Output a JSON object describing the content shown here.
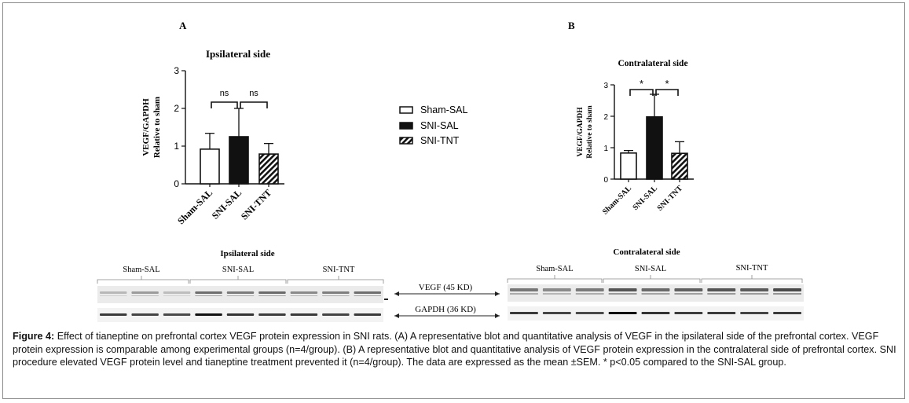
{
  "figure_label": "Figure 4:",
  "caption_text": "Effect of tianeptine on prefrontal cortex VEGF protein expression in SNI rats. (A) A representative blot and quantitative analysis of VEGF in the ipsilateral side of the prefrontal cortex. VEGF protein expression is comparable among experimental groups (n=4/group). (B) A representative blot and quantitative analysis of VEGF protein expression in the contralateral side of prefrontal cortex. SNI procedure elevated VEGF protein level and tianeptine treatment prevented it (n=4/group). The data are expressed as the mean ±SEM. * p<0.05 compared to the SNI-SAL group.",
  "legend": [
    {
      "label": "Sham-SAL",
      "pattern": "open"
    },
    {
      "label": "SNI-SAL",
      "pattern": "solid"
    },
    {
      "label": "SNI-TNT",
      "pattern": "hatched"
    }
  ],
  "chart_data": [
    {
      "panel": "A",
      "type": "bar",
      "title": "Ipsilateral side",
      "ylabel_lines": [
        "VEGF/GAPDH",
        "Relative to sham"
      ],
      "categories": [
        "Sham-SAL",
        "SNI-SAL",
        "SNI-TNT"
      ],
      "values": [
        0.92,
        1.25,
        0.79
      ],
      "errors": [
        0.42,
        0.75,
        0.28
      ],
      "patterns": [
        "open",
        "solid",
        "hatched"
      ],
      "ylim": [
        0,
        3
      ],
      "yticks": [
        0,
        1,
        2,
        3
      ],
      "annotations": [
        {
          "from": 0,
          "to": 1,
          "text": "ns"
        },
        {
          "from": 1,
          "to": 2,
          "text": "ns"
        }
      ]
    },
    {
      "panel": "B",
      "type": "bar",
      "title": "Contralateral side",
      "ylabel_lines": [
        "VEGF/GAPDH",
        "Relative to sham"
      ],
      "categories": [
        "Sham-SAL",
        "SNI-SAL",
        "SNI-TNT"
      ],
      "values": [
        0.83,
        1.98,
        0.82
      ],
      "errors": [
        0.08,
        0.72,
        0.37
      ],
      "patterns": [
        "open",
        "solid",
        "hatched"
      ],
      "ylim": [
        0,
        3
      ],
      "yticks": [
        0,
        1,
        2,
        3
      ],
      "annotations": [
        {
          "from": 0,
          "to": 1,
          "text": "*"
        },
        {
          "from": 1,
          "to": 2,
          "text": "*"
        }
      ]
    }
  ],
  "blots": [
    {
      "title": "Ipsilateral side",
      "groups": [
        "Sham-SAL",
        "SNI-SAL",
        "SNI-TNT"
      ]
    },
    {
      "title": "Contralateral side",
      "groups": [
        "Sham-SAL",
        "SNI-SAL",
        "SNI-TNT"
      ]
    }
  ],
  "blot_markers": {
    "vegf": "VEGF (45 KD)",
    "gapdh": "GAPDH (36 KD)"
  }
}
